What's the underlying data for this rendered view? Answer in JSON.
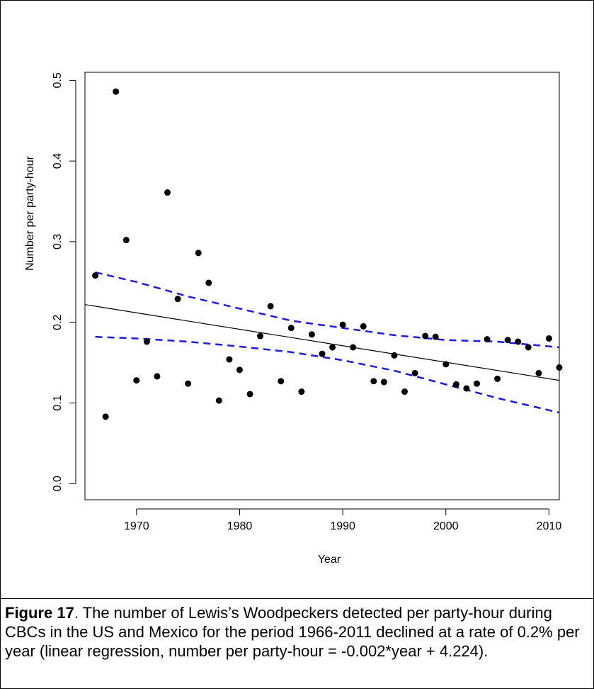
{
  "chart_data": {
    "type": "scatter",
    "xlabel": "Year",
    "ylabel": "Number per party-hour",
    "xlim": [
      1965,
      2011
    ],
    "ylim": [
      -0.02,
      0.51
    ],
    "x_ticks": [
      1970,
      1980,
      1990,
      2000,
      2010
    ],
    "y_ticks": [
      "0.0",
      "0.1",
      "0.2",
      "0.3",
      "0.4",
      "0.5"
    ],
    "grid": false,
    "series": [
      {
        "kind": "points",
        "color": "#000000",
        "x": [
          1966,
          1967,
          1968,
          1969,
          1970,
          1971,
          1972,
          1973,
          1974,
          1975,
          1976,
          1977,
          1978,
          1979,
          1980,
          1981,
          1982,
          1983,
          1984,
          1985,
          1986,
          1987,
          1988,
          1989,
          1990,
          1991,
          1992,
          1993,
          1994,
          1995,
          1996,
          1997,
          1998,
          1999,
          2000,
          2001,
          2002,
          2003,
          2004,
          2005,
          2006,
          2007,
          2008,
          2009,
          2010,
          2011
        ],
        "y": [
          0.258,
          0.083,
          0.486,
          0.302,
          0.128,
          0.176,
          0.133,
          0.361,
          0.229,
          0.124,
          0.286,
          0.249,
          0.103,
          0.154,
          0.141,
          0.111,
          0.183,
          0.22,
          0.127,
          0.193,
          0.114,
          0.185,
          0.161,
          0.169,
          0.197,
          0.169,
          0.195,
          0.127,
          0.126,
          0.159,
          0.114,
          0.137,
          0.183,
          0.182,
          0.148,
          0.123,
          0.118,
          0.124,
          0.179,
          0.13,
          0.178,
          0.176,
          0.169,
          0.137,
          0.18,
          0.144
        ]
      },
      {
        "kind": "regression-line",
        "color": "#000000",
        "x": [
          1965,
          2011
        ],
        "y": [
          0.222,
          0.128
        ]
      },
      {
        "kind": "upper-confidence-band",
        "color": "#1a1ae6",
        "x": [
          1966,
          1970,
          1975,
          1980,
          1985,
          1990,
          1995,
          2000,
          2005,
          2011
        ],
        "y": [
          0.262,
          0.25,
          0.232,
          0.217,
          0.202,
          0.193,
          0.184,
          0.178,
          0.176,
          0.169
        ]
      },
      {
        "kind": "lower-confidence-band",
        "color": "#1a1ae6",
        "x": [
          1966,
          1970,
          1975,
          1980,
          1985,
          1990,
          1995,
          2000,
          2005,
          2011
        ],
        "y": [
          0.182,
          0.18,
          0.176,
          0.17,
          0.163,
          0.153,
          0.14,
          0.123,
          0.106,
          0.088
        ]
      }
    ]
  },
  "caption": {
    "label": "Figure 17",
    "text": ". The number of Lewis’s Woodpeckers detected per party-hour during CBCs in the US and Mexico for the period 1966-2011 declined at a rate of 0.2% per year (linear regression, number per party-hour = -0.002*year + 4.224)."
  }
}
